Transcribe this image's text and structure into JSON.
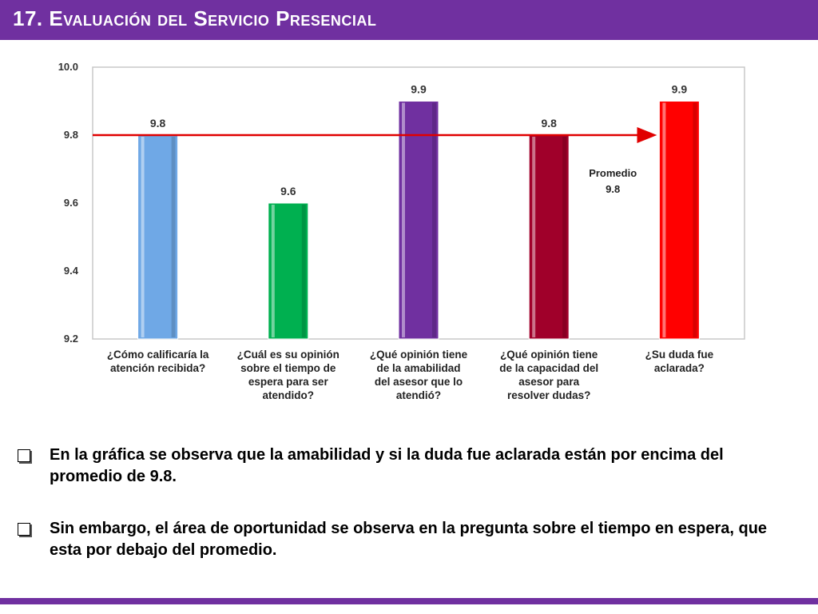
{
  "slide": {
    "title": "17. Evaluación del Servicio Presencial",
    "accent_color": "#7030a0"
  },
  "chart_data": {
    "type": "bar",
    "categories": [
      [
        "¿Cómo calificaría la",
        "atención recibida?"
      ],
      [
        "¿Cuál es su opinión",
        "sobre el tiempo de",
        "espera para ser",
        "atendido?"
      ],
      [
        "¿Qué opinión tiene",
        "de la amabilidad",
        "del asesor que lo",
        "atendió?"
      ],
      [
        "¿Qué opinión tiene",
        "de la capacidad del",
        "asesor para",
        "resolver dudas?"
      ],
      [
        "¿Su duda fue",
        "aclarada?"
      ]
    ],
    "values": [
      9.8,
      9.6,
      9.9,
      9.8,
      9.9
    ],
    "value_labels": [
      "9.8",
      "9.6",
      "9.9",
      "9.8",
      "9.9"
    ],
    "colors": [
      "#6fa8e6",
      "#00b050",
      "#7030a0",
      "#a0002a",
      "#ff0000"
    ],
    "ylim": [
      9.2,
      10.0
    ],
    "yticks": [
      "9.2",
      "9.4",
      "9.6",
      "9.8",
      "10.0"
    ],
    "average": {
      "value": 9.8,
      "label": [
        "Promedio",
        "9.8"
      ],
      "color": "#e00000"
    }
  },
  "bullets": [
    "En la gráfica se observa que  la  amabilidad y si la duda fue aclarada están por encima del promedio de 9.8.",
    "Sin embargo, el área de oportunidad se observa en la pregunta sobre el tiempo en espera, que esta por debajo del promedio."
  ]
}
